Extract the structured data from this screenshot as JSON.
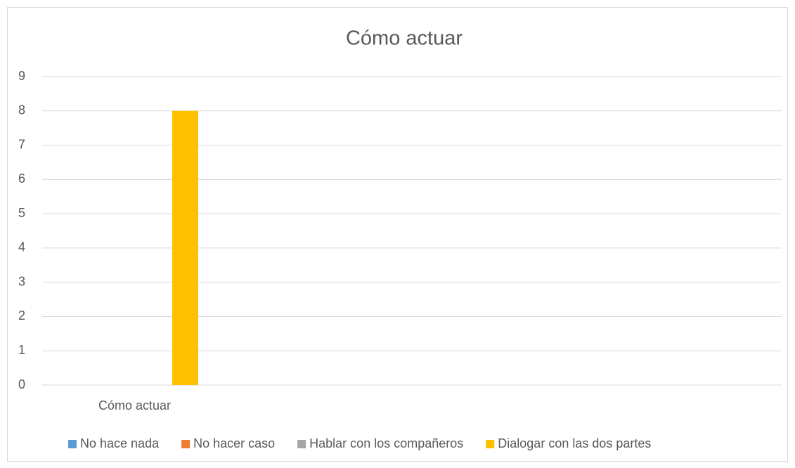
{
  "chart_data": {
    "type": "bar",
    "title": "Cómo actuar",
    "categories": [
      "Cómo actuar",
      null,
      null,
      null
    ],
    "series": [
      {
        "name": "No hace nada",
        "color": "#5b9bd5",
        "values": [
          0,
          null,
          null,
          null
        ]
      },
      {
        "name": "No hacer caso",
        "color": "#ed7d31",
        "values": [
          0,
          null,
          null,
          null
        ]
      },
      {
        "name": "Hablar con los compañeros",
        "color": "#a5a5a5",
        "values": [
          0,
          null,
          null,
          null
        ]
      },
      {
        "name": "Dialogar con las dos partes",
        "color": "#ffc000",
        "values": [
          8,
          null,
          null,
          null
        ]
      }
    ],
    "ylim": [
      0,
      9
    ],
    "yticks": [
      0,
      1,
      2,
      3,
      4,
      5,
      6,
      7,
      8,
      9
    ],
    "grid": true,
    "legend": "bottom"
  }
}
